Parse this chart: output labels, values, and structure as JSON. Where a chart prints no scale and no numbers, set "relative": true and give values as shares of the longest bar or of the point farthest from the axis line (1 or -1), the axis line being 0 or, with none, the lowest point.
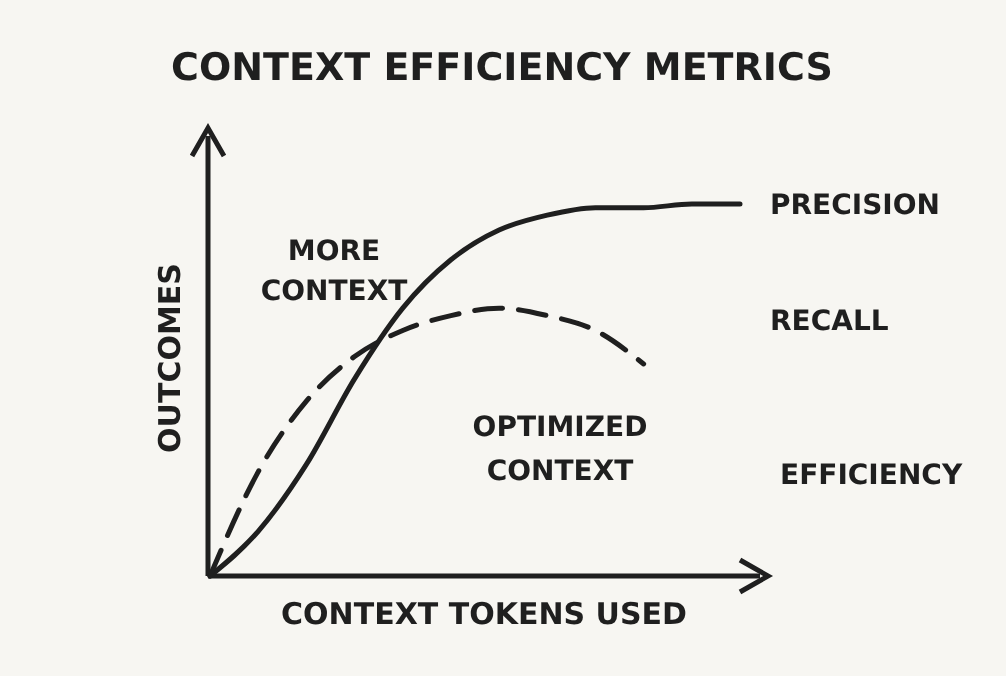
{
  "chart_data": {
    "type": "line",
    "title": "CONTEXT EFFICIENCY METRICS",
    "xlabel": "CONTEXT TOKENS USED",
    "ylabel": "OUTCOMES",
    "relative": true,
    "categories": [
      null,
      null,
      null,
      null,
      null,
      null,
      null,
      null,
      null,
      null,
      null,
      null
    ],
    "series": [
      {
        "name": "PRECISION",
        "color": "#1f1f1f",
        "line_style": "solid",
        "values": [
          0,
          0.12,
          0.3,
          0.53,
          0.72,
          0.85,
          0.93,
          0.97,
          0.99,
          0.99,
          1,
          1
        ]
      },
      {
        "name": "RECALL",
        "color": "#1f1f1f",
        "line_style": "dashed",
        "values": [
          0,
          0.28,
          0.47,
          0.59,
          0.66,
          0.7,
          0.72,
          0.7,
          0.66,
          0.57,
          null,
          null
        ]
      }
    ],
    "annotations": [
      "MORE CONTEXT",
      "OPTIMIZED CONTEXT",
      "EFFICIENCY"
    ],
    "grid": false
  }
}
